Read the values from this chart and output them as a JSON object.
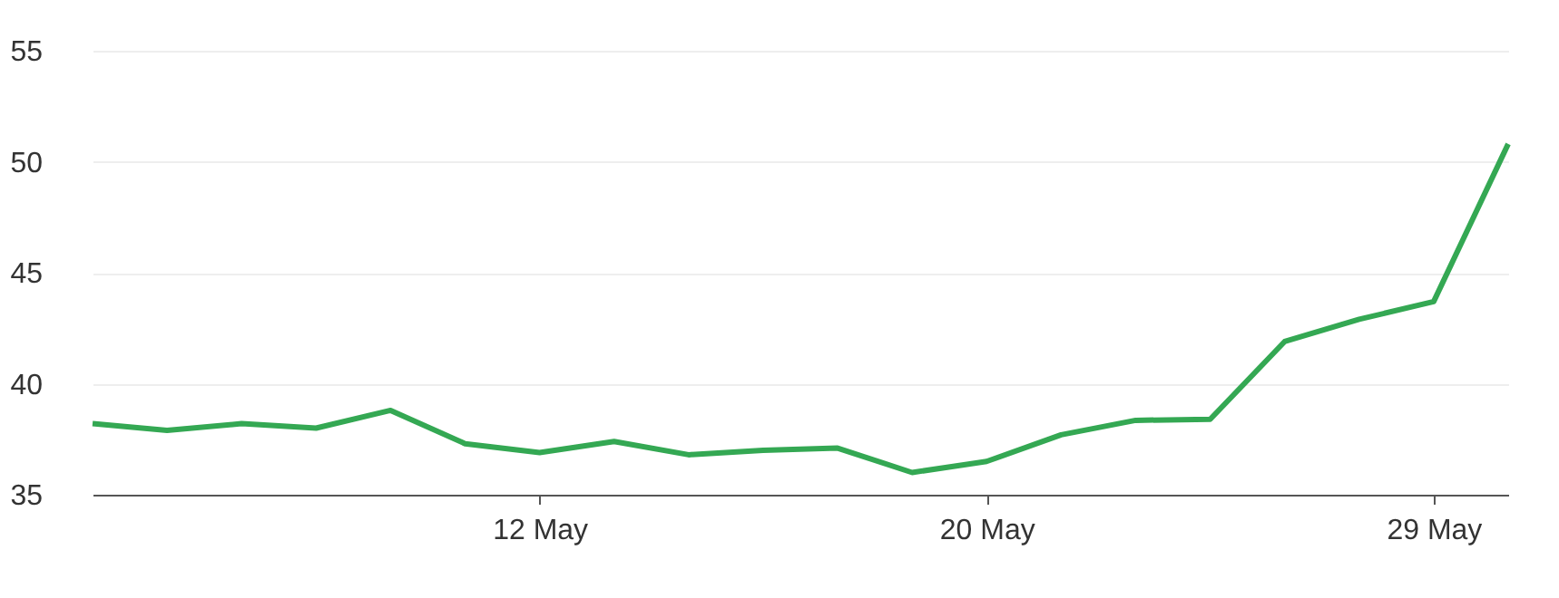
{
  "chart_data": {
    "type": "line",
    "categories": [
      null,
      null,
      null,
      null,
      null,
      null,
      "12 May",
      null,
      null,
      null,
      null,
      null,
      "20 May",
      null,
      null,
      null,
      null,
      null,
      "29 May",
      null
    ],
    "series": [
      {
        "color": "#34a853",
        "values": [
          38.2,
          37.9,
          38.2,
          38.0,
          38.8,
          37.3,
          36.9,
          37.4,
          36.8,
          37.0,
          37.1,
          36.0,
          36.5,
          37.7,
          38.35,
          38.4,
          41.9,
          42.9,
          43.7,
          50.8
        ]
      }
    ],
    "ylim": [
      35,
      55
    ],
    "yticks": [
      35,
      40,
      45,
      50,
      55
    ],
    "grid": "y",
    "marker": "none",
    "line_style": "solid"
  }
}
